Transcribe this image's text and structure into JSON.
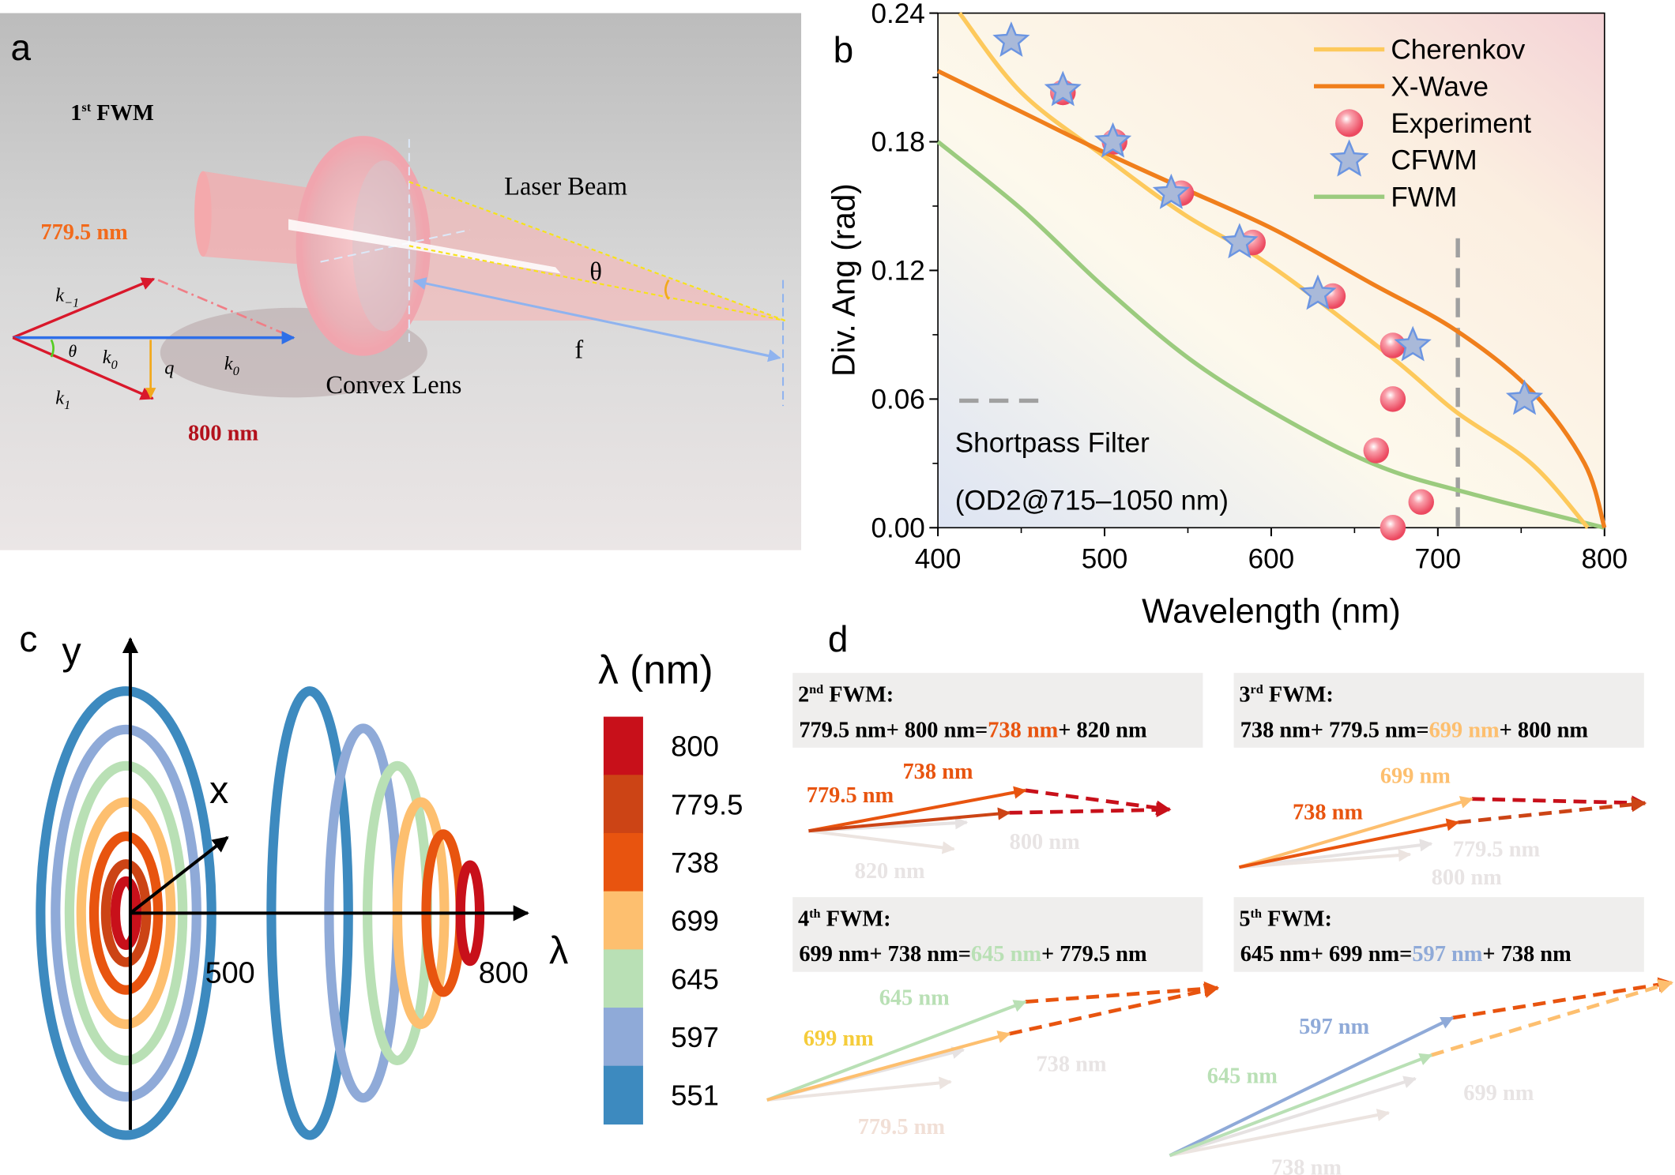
{
  "panel_a": {
    "label": "a",
    "title_num": "1",
    "title_sup": "st",
    "title_rest": " FWM",
    "wl_top": "779.5 nm",
    "wl_bottom": "800 nm",
    "laser_beam": "Laser Beam",
    "convex_lens": "Convex Lens",
    "theta": "θ",
    "focal": "f",
    "vec_k_minus1": "k",
    "vec_k_minus1_sub": "−1",
    "vec_k0": "k",
    "vec_k0_sub": "0",
    "vec_k1": "k",
    "vec_k1_sub": "1",
    "vec_q": "q",
    "angle": "θ"
  },
  "chart_data": {
    "label": "b",
    "type": "line+scatter",
    "xlabel": "Wavelength (nm)",
    "ylabel": "Div. Ang (rad)",
    "xlim": [
      400,
      800
    ],
    "ylim": [
      0,
      0.24
    ],
    "xticks": [
      400,
      500,
      600,
      700,
      800
    ],
    "xtick_labels": [
      "400",
      "500",
      "600",
      "700",
      "800"
    ],
    "yticks": [
      0,
      0.06,
      0.12,
      0.18,
      0.24
    ],
    "ytick_labels": [
      "0.00",
      "0.06",
      "0.12",
      "0.18",
      "0.24"
    ],
    "grid": false,
    "legend_placement": "top-right",
    "series": [
      {
        "name": "Cherenkov",
        "kind": "line",
        "color": "#fdc95c",
        "x": [
          413,
          450,
          500,
          548,
          600,
          673,
          711,
          756,
          790
        ],
        "y": [
          0.24,
          0.203,
          0.173,
          0.146,
          0.122,
          0.079,
          0.054,
          0.03,
          0.0
        ]
      },
      {
        "name": "X-Wave",
        "kind": "line",
        "color": "#f07f1c",
        "x": [
          400,
          450,
          500,
          548,
          602,
          660,
          711,
          756,
          788,
          800
        ],
        "y": [
          0.213,
          0.194,
          0.175,
          0.158,
          0.139,
          0.114,
          0.092,
          0.064,
          0.03,
          0.0
        ]
      },
      {
        "name": "Experiment",
        "kind": "scatter",
        "marker": "sphere",
        "color": "#f0566a",
        "x": [
          475,
          506,
          546,
          589,
          637,
          673,
          673,
          663,
          690,
          673
        ],
        "y": [
          0.203,
          0.18,
          0.156,
          0.133,
          0.108,
          0.085,
          0.06,
          0.036,
          0.012,
          0.0
        ]
      },
      {
        "name": "CFWM",
        "kind": "scatter",
        "marker": "star",
        "color": "#a9b9d9",
        "x": [
          444,
          475,
          505,
          540,
          581,
          628,
          685,
          752
        ],
        "y": [
          0.227,
          0.204,
          0.18,
          0.156,
          0.133,
          0.109,
          0.085,
          0.06
        ]
      },
      {
        "name": "FWM",
        "kind": "line",
        "color": "#9bcb7e",
        "x": [
          400,
          451,
          500,
          554,
          612,
          667,
          724,
          800
        ],
        "y": [
          0.18,
          0.148,
          0.112,
          0.077,
          0.049,
          0.028,
          0.015,
          0.0
        ]
      }
    ],
    "cutoff_line": {
      "x": 712,
      "y_top": 0.135,
      "color": "#a0a0a0",
      "style": "dashed"
    },
    "annotation_line1": "Shortpass Filter",
    "annotation_line2": "(OD2@715–1050 nm)"
  },
  "panel_c": {
    "label": "c",
    "axis_y": "y",
    "axis_x": "x",
    "axis_lambda": "λ",
    "tick_500": "500",
    "tick_800": "800",
    "colorbar_title": "λ (nm)",
    "colorbar": [
      {
        "label": "800",
        "color": "#c8101a"
      },
      {
        "label": "779.5",
        "color": "#cc4415"
      },
      {
        "label": "738",
        "color": "#e8540f"
      },
      {
        "label": "699",
        "color": "#fdbf6f"
      },
      {
        "label": "645",
        "color": "#b9e0b5"
      },
      {
        "label": "597",
        "color": "#8faad8"
      },
      {
        "label": "551",
        "color": "#3d8abf"
      }
    ]
  },
  "panel_d": {
    "label": "d",
    "boxes": [
      {
        "num": "2",
        "sup": "nd",
        "rest": " FWM:",
        "eq_pre": "779.5 nm+ 800 nm=",
        "eq_hl": "738 nm",
        "eq_post": "+ 820 nm",
        "hl_color": "#e8540f",
        "arrow_a": "738 nm",
        "arrow_b": "779.5 nm",
        "faint_a": "800 nm",
        "faint_b": "820 nm"
      },
      {
        "num": "3",
        "sup": "rd",
        "rest": " FWM:",
        "eq_pre": "738 nm+ 779.5 nm=",
        "eq_hl": "699 nm",
        "eq_post": "+ 800 nm",
        "hl_color": "#fdbf6f",
        "arrow_a": "699 nm",
        "arrow_b": "738 nm",
        "faint_a": "779.5 nm",
        "faint_b": "800 nm"
      },
      {
        "num": "4",
        "sup": "th",
        "rest": " FWM:",
        "eq_pre": "699 nm+ 738 nm=",
        "eq_hl": "645 nm",
        "eq_post": "+ 779.5 nm",
        "hl_color": "#b9e0b5",
        "arrow_a": "645 nm",
        "arrow_b": "699 nm",
        "faint_a": "738 nm",
        "faint_b": "779.5 nm"
      },
      {
        "num": "5",
        "sup": "th",
        "rest": " FWM:",
        "eq_pre": "645 nm+ 699 nm=",
        "eq_hl": "597 nm",
        "eq_post": "+ 738 nm",
        "hl_color": "#8faad8",
        "arrow_a": "597 nm",
        "arrow_b": "645 nm",
        "faint_a": "699 nm",
        "faint_b": "738 nm"
      }
    ]
  }
}
